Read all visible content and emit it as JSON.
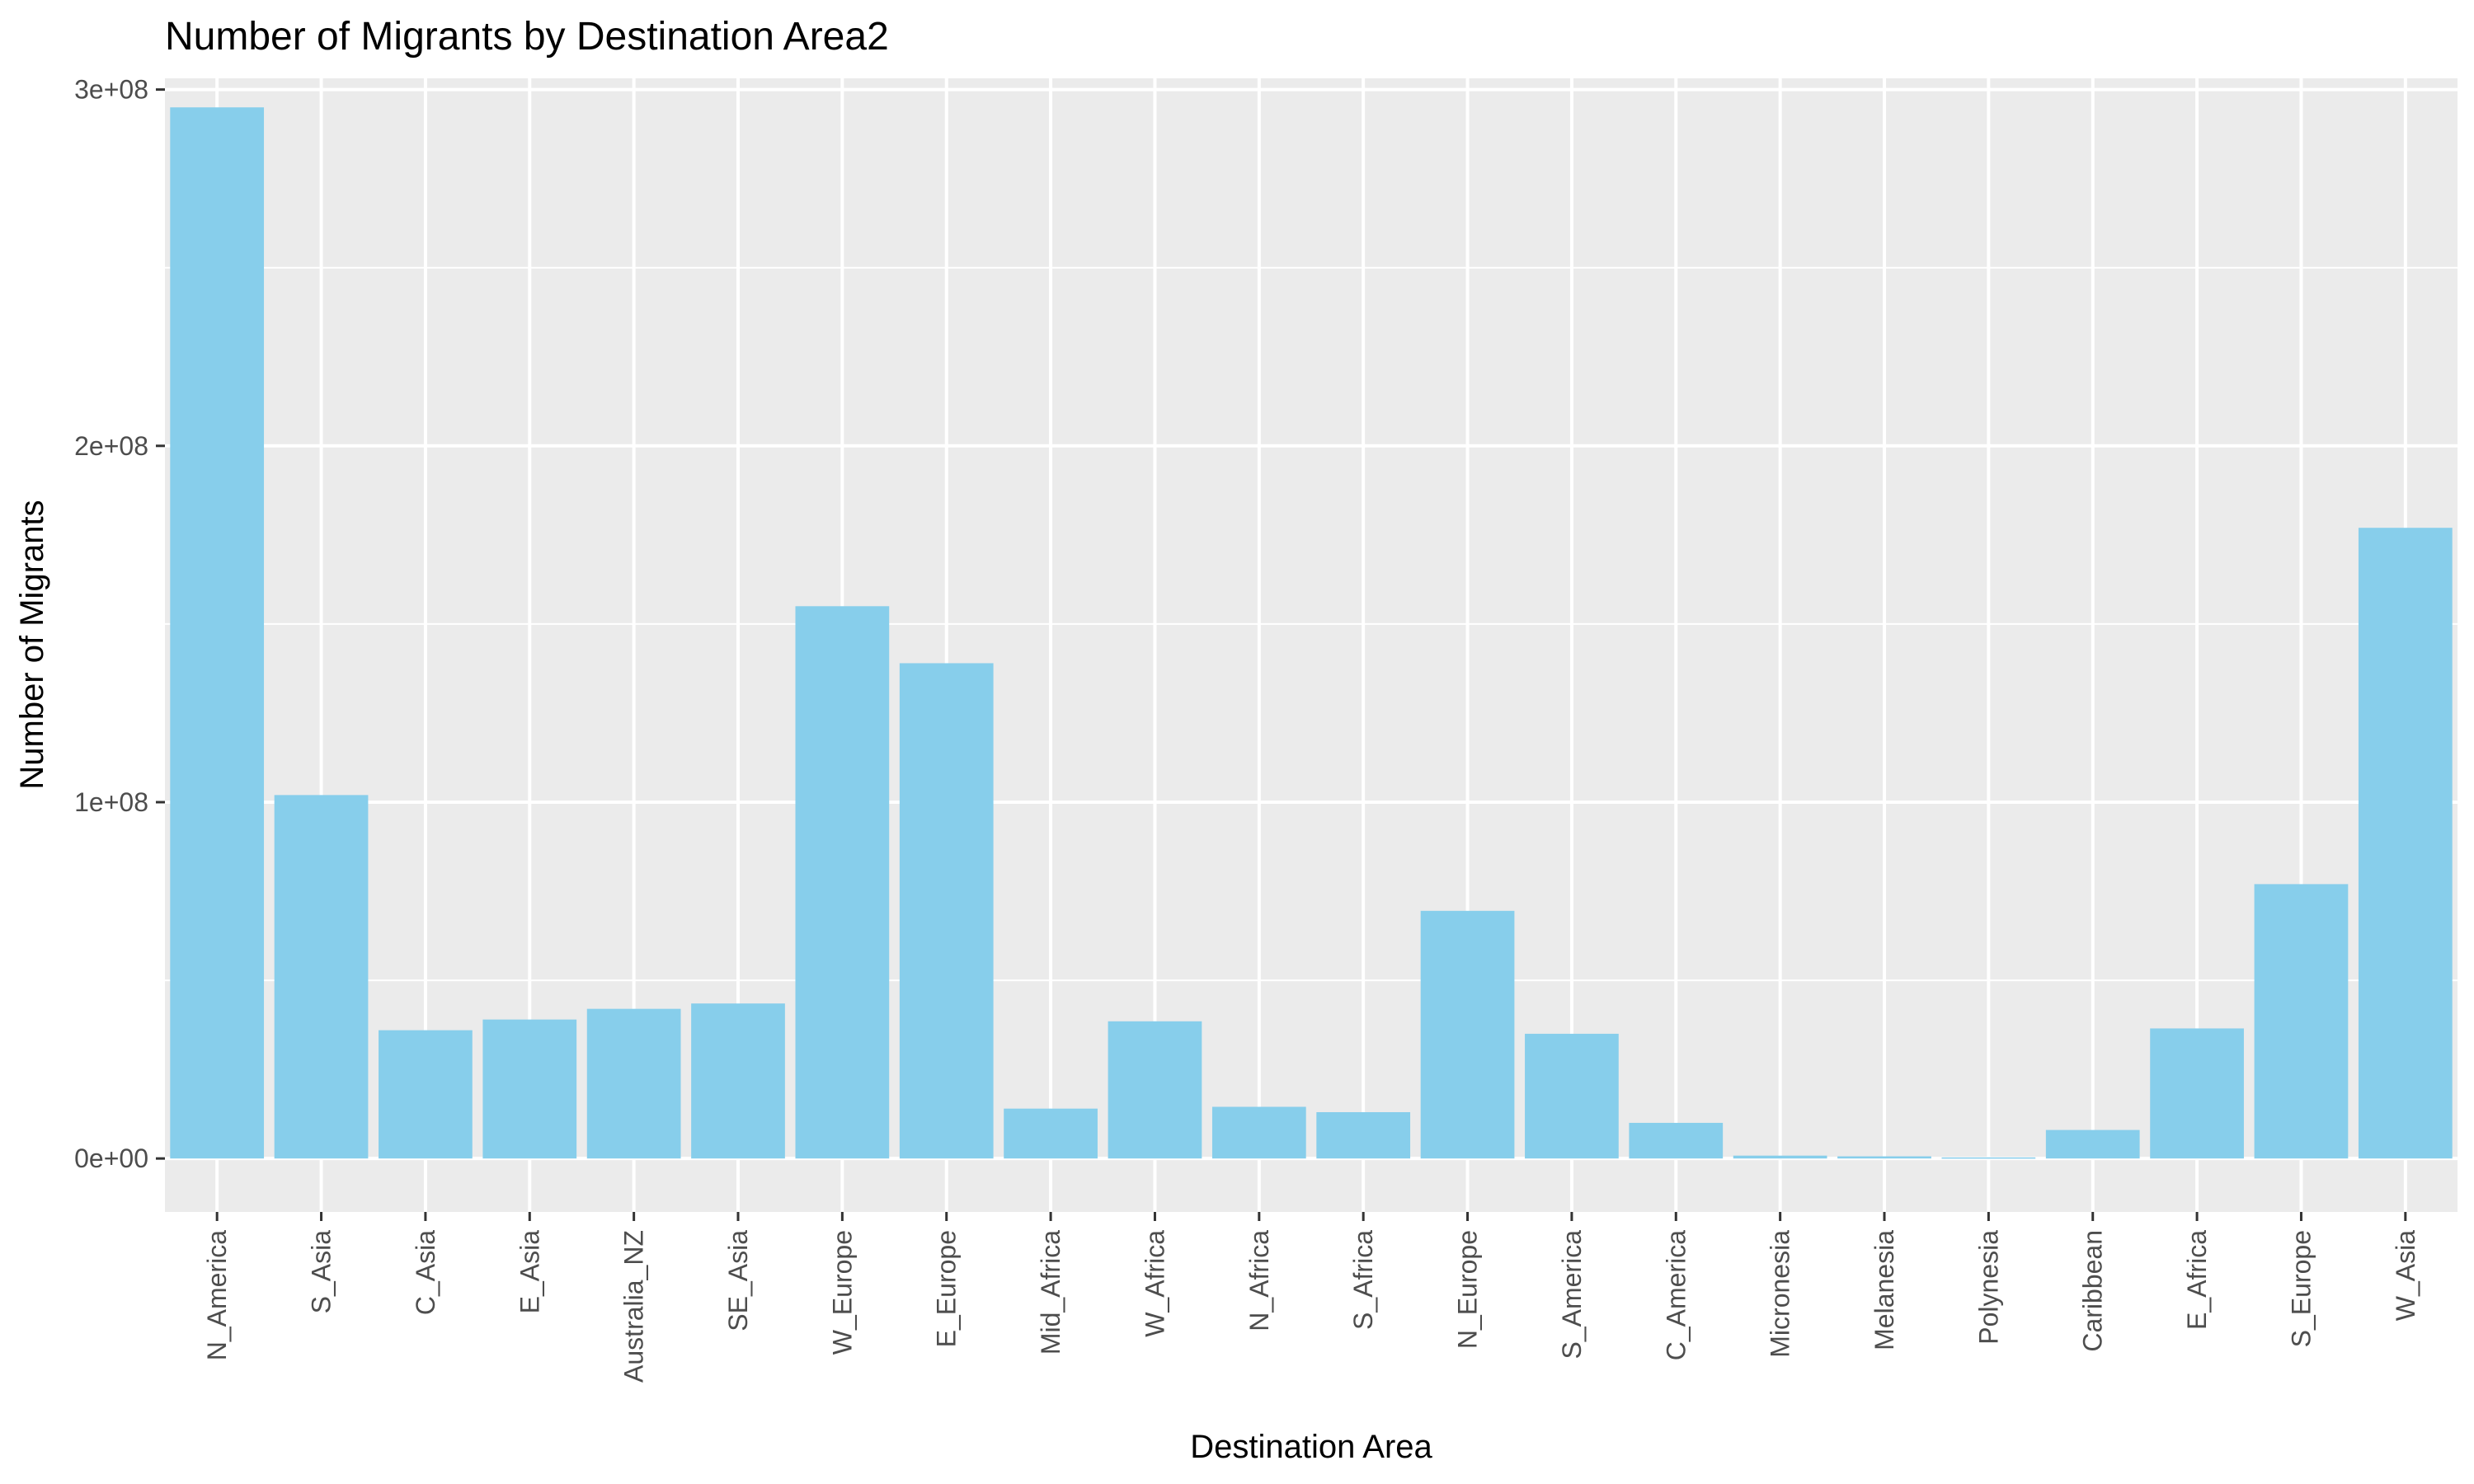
{
  "chart_data": {
    "type": "bar",
    "title": "Number of Migrants by Destination Area2",
    "xlabel": "Destination Area",
    "ylabel": "Number of Migrants",
    "categories": [
      "N_America",
      "S_Asia",
      "C_Asia",
      "E_Asia",
      "Australia_NZ",
      "SE_Asia",
      "W_Europe",
      "E_Europe",
      "Mid_Africa",
      "W_Africa",
      "N_Africa",
      "S_Africa",
      "N_Europe",
      "S_America",
      "C_America",
      "Micronesia",
      "Melanesia",
      "Polynesia",
      "Caribbean",
      "E_Africa",
      "S_Europe",
      "W_Asia"
    ],
    "values": [
      295000000,
      102000000,
      36000000,
      39000000,
      42000000,
      43500000,
      155000000,
      139000000,
      14000000,
      38500000,
      14500000,
      13000000,
      69500000,
      35000000,
      10000000,
      800000,
      600000,
      300000,
      8000000,
      36500000,
      77000000,
      177000000
    ],
    "ylim": [
      -15000000,
      300000000
    ],
    "yticks": [
      0,
      100000000,
      200000000,
      300000000
    ],
    "ytick_labels": [
      "0e+00",
      "1e+08",
      "2e+08",
      "3e+08"
    ],
    "grid": true,
    "bar_color": "#87ceeb",
    "panel_color": "#ebebeb",
    "grid_color": "#ffffff"
  }
}
